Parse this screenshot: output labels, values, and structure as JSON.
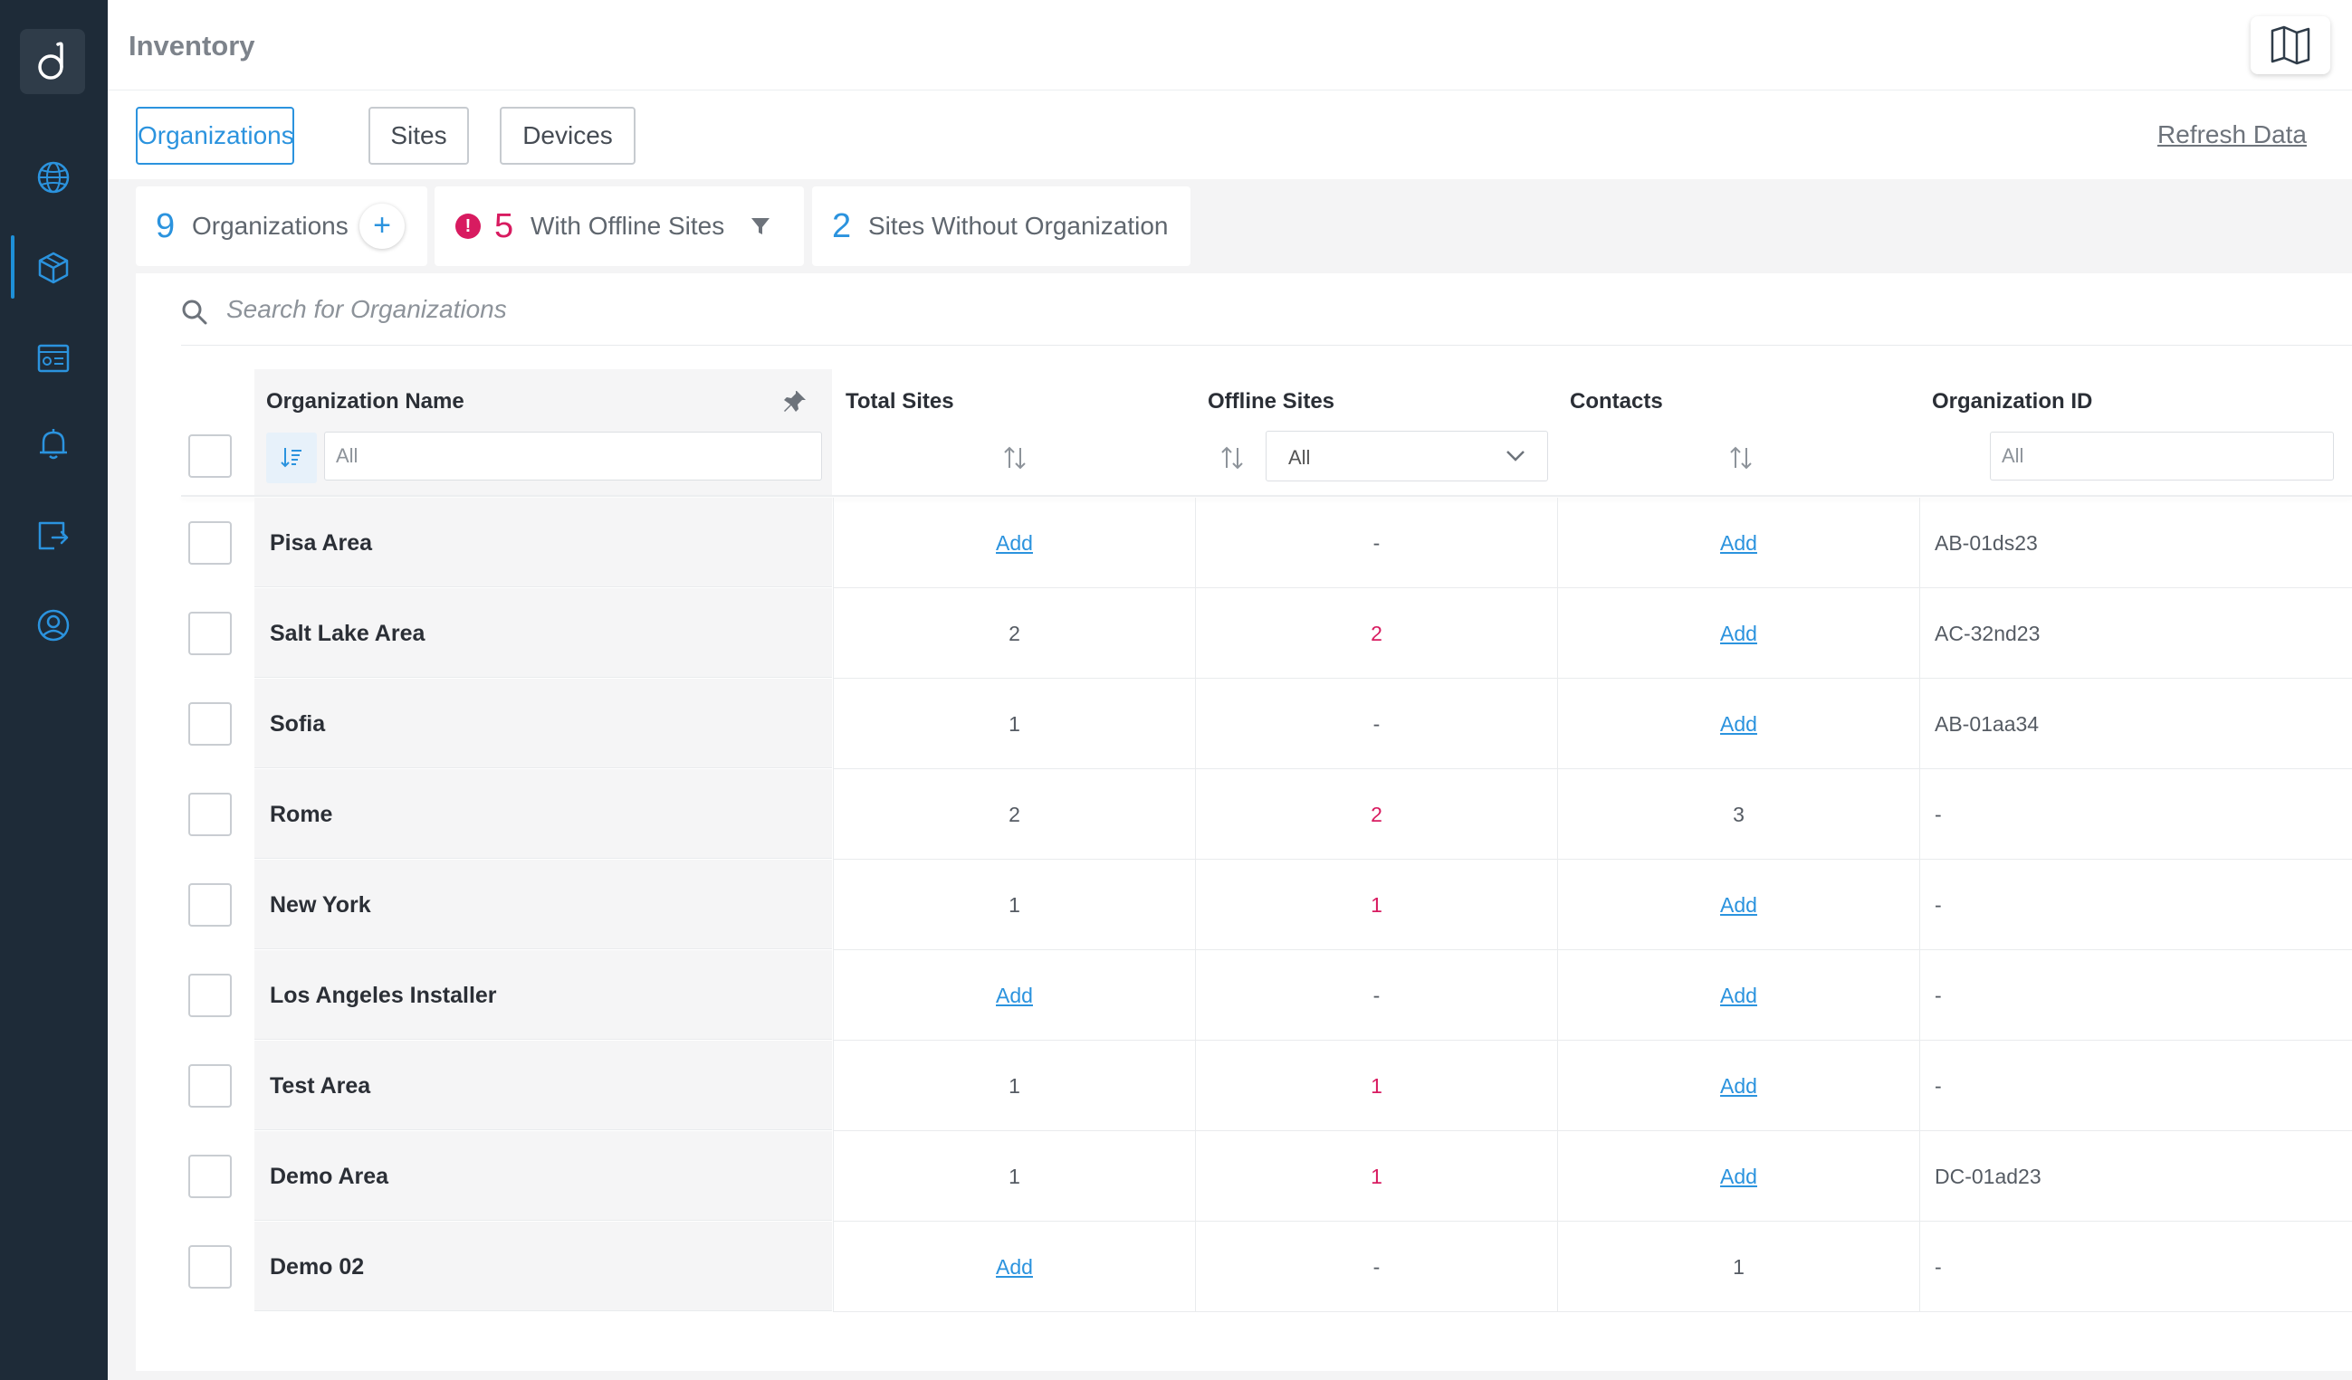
{
  "header": {
    "title": "Inventory"
  },
  "tabs": [
    {
      "label": "Organizations",
      "active": true
    },
    {
      "label": "Sites",
      "active": false
    },
    {
      "label": "Devices",
      "active": false
    }
  ],
  "refresh_label": "Refresh Data",
  "summary": {
    "organizations_count": "9",
    "organizations_label": "Organizations",
    "add_symbol": "+",
    "offline_alert_symbol": "!",
    "offline_count": "5",
    "offline_label": "With Offline Sites",
    "no_org_count": "2",
    "no_org_label": "Sites Without Organization"
  },
  "search": {
    "placeholder": "Search for Organizations"
  },
  "columns": {
    "name": "Organization Name",
    "total_sites": "Total Sites",
    "offline_sites": "Offline Sites",
    "contacts": "Contacts",
    "org_id": "Organization ID"
  },
  "filters": {
    "name_placeholder": "All",
    "offline_select": "All",
    "org_id_placeholder": "All"
  },
  "rows": [
    {
      "name": "Pisa Area",
      "total_sites": "Add",
      "offline_sites": "-",
      "contacts": "Add",
      "org_id": "AB-01ds23"
    },
    {
      "name": "Salt Lake Area",
      "total_sites": "2",
      "offline_sites": "2",
      "contacts": "Add",
      "org_id": "AC-32nd23"
    },
    {
      "name": "Sofia",
      "total_sites": "1",
      "offline_sites": "-",
      "contacts": "Add",
      "org_id": "AB-01aa34"
    },
    {
      "name": "Rome",
      "total_sites": "2",
      "offline_sites": "2",
      "contacts": "3",
      "org_id": "-"
    },
    {
      "name": "New York",
      "total_sites": "1",
      "offline_sites": "1",
      "contacts": "Add",
      "org_id": "-"
    },
    {
      "name": "Los Angeles Installer",
      "total_sites": "Add",
      "offline_sites": "-",
      "contacts": "Add",
      "org_id": "-"
    },
    {
      "name": "Test Area",
      "total_sites": "1",
      "offline_sites": "1",
      "contacts": "Add",
      "org_id": "-"
    },
    {
      "name": "Demo Area",
      "total_sites": "1",
      "offline_sites": "1",
      "contacts": "Add",
      "org_id": "DC-01ad23"
    },
    {
      "name": "Demo 02",
      "total_sites": "Add",
      "offline_sites": "-",
      "contacts": "1",
      "org_id": "-"
    }
  ],
  "sidebar": {
    "items": [
      {
        "icon": "globe-icon",
        "active": false
      },
      {
        "icon": "inventory-cube-icon",
        "active": true
      },
      {
        "icon": "dashboard-icon",
        "active": false
      },
      {
        "icon": "bell-icon",
        "active": false
      },
      {
        "icon": "export-icon",
        "active": false
      },
      {
        "icon": "user-icon",
        "active": false
      }
    ]
  },
  "colors": {
    "accent": "#2b93de",
    "alert": "#d81b60",
    "sidebar": "#1e2b38"
  }
}
